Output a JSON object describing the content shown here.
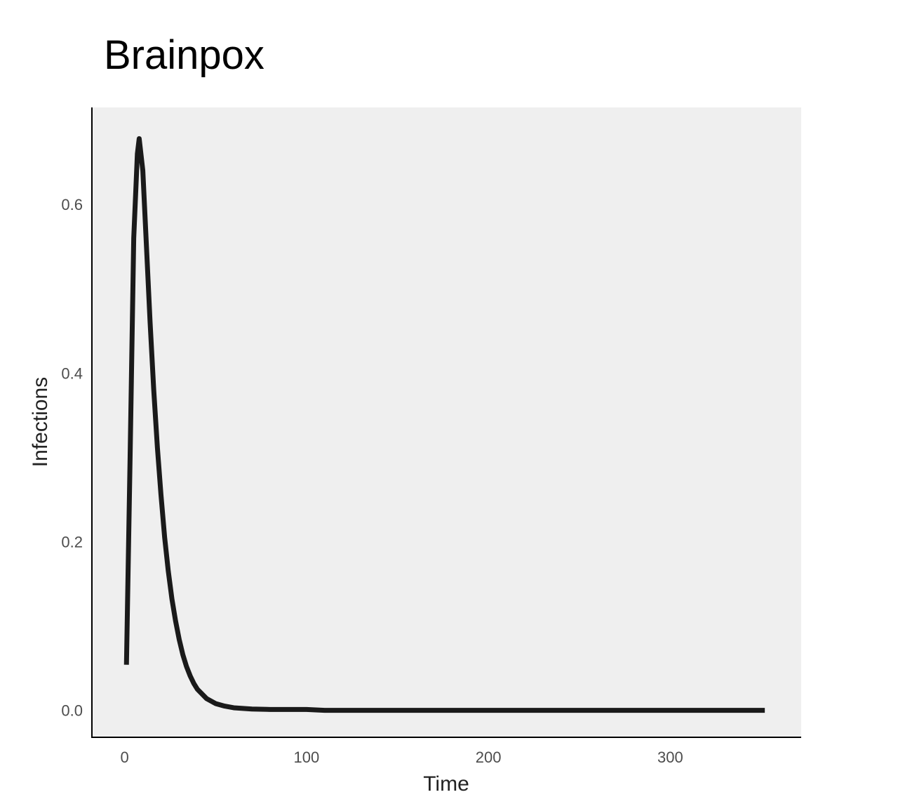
{
  "chart_data": {
    "type": "line",
    "title": "Brainpox",
    "xlabel": "Time",
    "ylabel": "Infections",
    "xlim": [
      -18,
      372
    ],
    "ylim": [
      -0.032,
      0.715
    ],
    "x_ticks": [
      0,
      100,
      200,
      300
    ],
    "x_tick_labels": [
      "0",
      "100",
      "200",
      "300"
    ],
    "y_ticks": [
      0.0,
      0.2,
      0.4,
      0.6
    ],
    "y_tick_labels": [
      "0.0",
      "0.2",
      "0.4",
      "0.6"
    ],
    "grid": false,
    "panel_background": "#efefef",
    "series": [
      {
        "color": "#1a1a1a",
        "x": [
          1,
          3,
          5,
          7,
          8,
          10,
          12,
          14,
          16,
          18,
          20,
          22,
          24,
          26,
          28,
          30,
          32,
          34,
          36,
          38,
          40,
          45,
          50,
          55,
          60,
          70,
          80,
          100,
          110,
          150,
          200,
          250,
          300,
          352
        ],
        "y": [
          0.054,
          0.3,
          0.56,
          0.66,
          0.678,
          0.64,
          0.55,
          0.46,
          0.38,
          0.312,
          0.255,
          0.205,
          0.165,
          0.132,
          0.106,
          0.084,
          0.066,
          0.052,
          0.041,
          0.032,
          0.025,
          0.014,
          0.008,
          0.005,
          0.003,
          0.0015,
          0.001,
          0.001,
          0.0,
          0.0,
          0.0,
          0.0,
          0.0,
          0.0
        ]
      }
    ]
  }
}
